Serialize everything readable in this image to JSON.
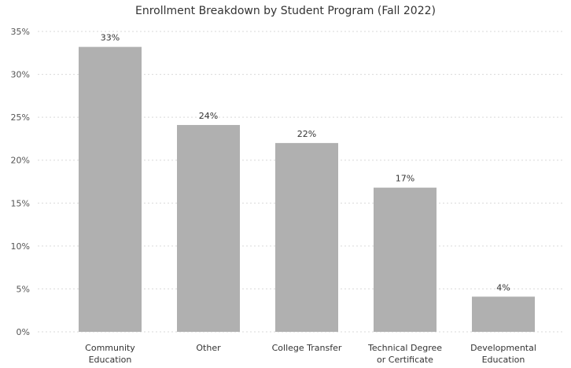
{
  "chart_data": {
    "type": "bar",
    "title": "Enrollment Breakdown by Student Program (Fall 2022)",
    "categories": [
      [
        "Community",
        "Education"
      ],
      [
        "Other"
      ],
      [
        "College Transfer"
      ],
      [
        "Technical Degree",
        "or Certificate"
      ],
      [
        "Developmental",
        "Education"
      ]
    ],
    "values": [
      33.2,
      24.1,
      22.0,
      16.8,
      4.1
    ],
    "data_labels": [
      "33%",
      "24%",
      "22%",
      "17%",
      "4%"
    ],
    "y_ticks": [
      "0%",
      "5%",
      "10%",
      "15%",
      "20%",
      "25%",
      "30%",
      "35%"
    ],
    "ylim": [
      0,
      35
    ],
    "xlabel": "",
    "ylabel": "",
    "grid": true,
    "bar_color": "#b0b0b0",
    "grid_color": "#d9d9d9"
  }
}
